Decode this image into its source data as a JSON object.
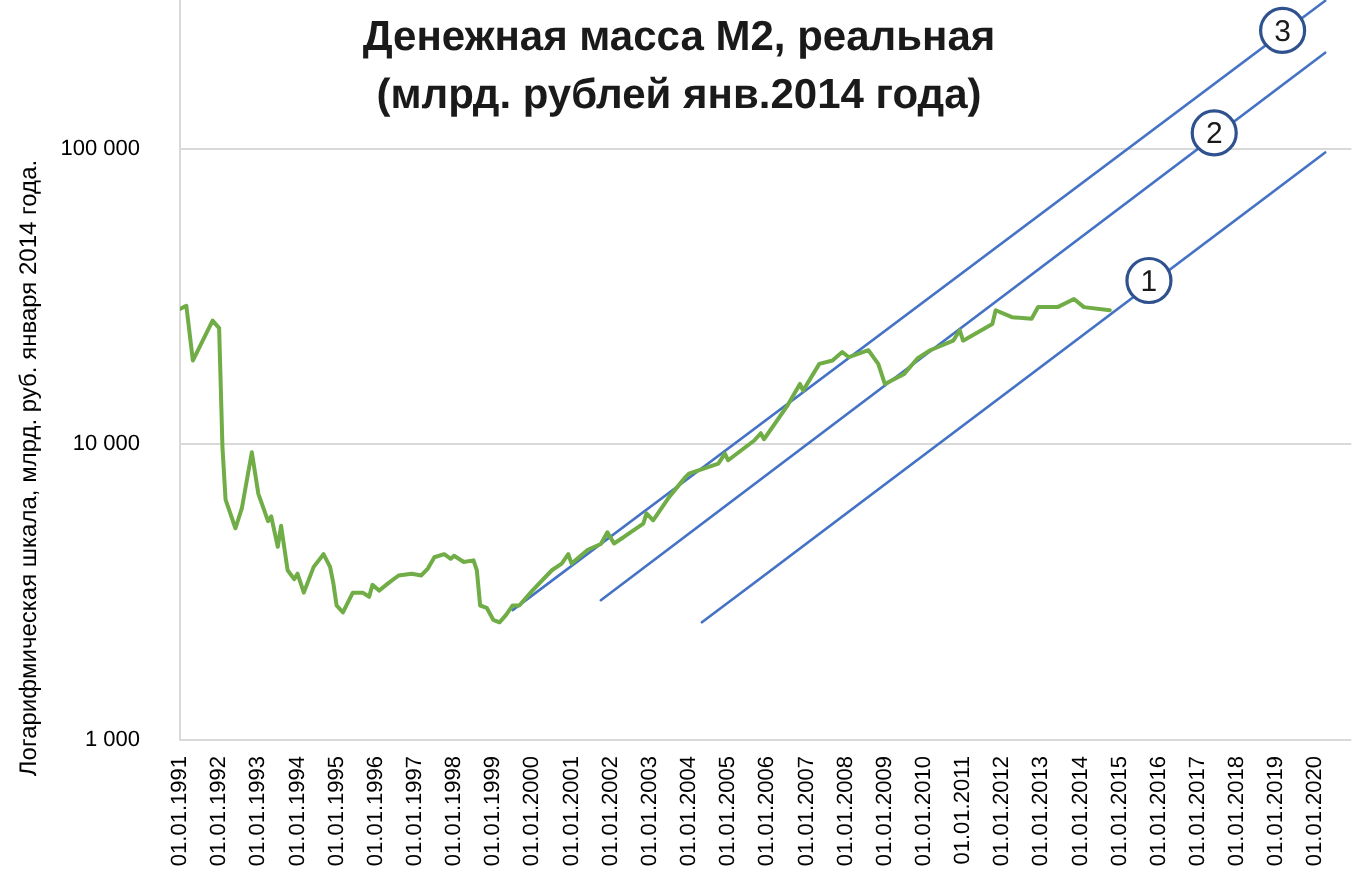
{
  "chart_data": {
    "type": "line",
    "title": "Денежная масса М2, реальная",
    "subtitle": "(млрд. рублей янв.2014 года)",
    "ylabel": "Логарифмическая шкала, млрд. руб. января 2014 года.",
    "log": true,
    "grid": "y",
    "marker": "none",
    "xlim": [
      "1991-01-01",
      "2020-12-01"
    ],
    "xticks": [
      {
        "value": "1991-01-01",
        "label": "01.01.1991"
      },
      {
        "value": "1992-01-01",
        "label": "01.01.1992"
      },
      {
        "value": "1993-01-01",
        "label": "01.01.1993"
      },
      {
        "value": "1994-01-01",
        "label": "01.01.1994"
      },
      {
        "value": "1995-01-01",
        "label": "01.01.1995"
      },
      {
        "value": "1996-01-01",
        "label": "01.01.1996"
      },
      {
        "value": "1997-01-01",
        "label": "01.01.1997"
      },
      {
        "value": "1998-01-01",
        "label": "01.01.1998"
      },
      {
        "value": "1999-01-01",
        "label": "01.01.1999"
      },
      {
        "value": "2000-01-01",
        "label": "01.01.2000"
      },
      {
        "value": "2001-01-01",
        "label": "01.01.2001"
      },
      {
        "value": "2002-01-01",
        "label": "01.01.2002"
      },
      {
        "value": "2003-01-01",
        "label": "01.01.2003"
      },
      {
        "value": "2004-01-01",
        "label": "01.01.2004"
      },
      {
        "value": "2005-01-01",
        "label": "01.01.2005"
      },
      {
        "value": "2006-01-01",
        "label": "01.01.2006"
      },
      {
        "value": "2007-01-01",
        "label": "01.01.2007"
      },
      {
        "value": "2008-01-01",
        "label": "01.01.2008"
      },
      {
        "value": "2009-01-01",
        "label": "01.01.2009"
      },
      {
        "value": "2010-01-01",
        "label": "01.01.2010"
      },
      {
        "value": "2011-01-01",
        "label": "01.01.2011"
      },
      {
        "value": "2012-01-01",
        "label": "01.01.2012"
      },
      {
        "value": "2013-01-01",
        "label": "01.01.2013"
      },
      {
        "value": "2014-01-01",
        "label": "01.01.2014"
      },
      {
        "value": "2015-01-01",
        "label": "01.01.2015"
      },
      {
        "value": "2016-01-01",
        "label": "01.01.2016"
      },
      {
        "value": "2017-01-01",
        "label": "01.01.2017"
      },
      {
        "value": "2018-01-01",
        "label": "01.01.2018"
      },
      {
        "value": "2019-01-01",
        "label": "01.01.2019"
      },
      {
        "value": "2020-01-01",
        "label": "01.01.2020"
      }
    ],
    "ylim": [
      1000,
      320000
    ],
    "yticks": [
      {
        "value": 1000,
        "label": "1 000"
      },
      {
        "value": 10000,
        "label": "10 000"
      },
      {
        "value": 100000,
        "label": "100 000"
      }
    ],
    "series": [
      {
        "color": "#70ad47",
        "x": [
          "1991-01",
          "1991-03",
          "1991-05",
          "1991-11",
          "1992-01",
          "1992-02",
          "1992-03",
          "1992-06",
          "1992-08",
          "1992-11",
          "1993-01",
          "1993-04",
          "1993-05",
          "1993-07",
          "1993-08",
          "1993-10",
          "1993-12",
          "1994-01",
          "1994-03",
          "1994-06",
          "1994-09",
          "1994-11",
          "1994-12",
          "1995-01",
          "1995-03",
          "1995-06",
          "1995-09",
          "1995-11",
          "1995-12",
          "1996-02",
          "1996-05",
          "1996-08",
          "1996-12",
          "1997-03",
          "1997-05",
          "1997-07",
          "1997-10",
          "1997-12",
          "1998-01",
          "1998-04",
          "1998-07",
          "1998-08",
          "1998-09",
          "1998-11",
          "1999-01",
          "1999-03",
          "1999-05",
          "1999-07",
          "1999-09",
          "2000-01",
          "2000-07",
          "2000-10",
          "2000-12",
          "2001-01",
          "2001-06",
          "2001-10",
          "2001-12",
          "2002-02",
          "2002-05",
          "2002-11",
          "2002-12",
          "2003-02",
          "2003-07",
          "2003-12",
          "2004-01",
          "2004-10",
          "2004-12",
          "2005-01",
          "2005-09",
          "2005-11",
          "2005-12",
          "2006-07",
          "2006-11",
          "2006-12",
          "2007-05",
          "2007-09",
          "2007-12",
          "2008-02",
          "2008-08",
          "2008-11",
          "2009-01",
          "2009-03",
          "2009-07",
          "2009-11",
          "2010-03",
          "2010-10",
          "2010-12",
          "2011-01",
          "2011-10",
          "2011-11",
          "2012-04",
          "2012-10",
          "2012-12",
          "2013-06",
          "2013-11",
          "2014-02",
          "2014-10"
        ],
        "values": [
          28700,
          29400,
          19200,
          26200,
          24700,
          9800,
          6500,
          5200,
          6100,
          9400,
          6800,
          5500,
          5700,
          4500,
          5300,
          3750,
          3500,
          3650,
          3150,
          3850,
          4250,
          3850,
          3400,
          2850,
          2700,
          3150,
          3150,
          3050,
          3350,
          3200,
          3400,
          3600,
          3650,
          3600,
          3800,
          4150,
          4250,
          4100,
          4200,
          4000,
          4050,
          3750,
          2850,
          2800,
          2550,
          2500,
          2650,
          2850,
          2850,
          3200,
          3750,
          3950,
          4250,
          3950,
          4400,
          4600,
          5040,
          4620,
          4850,
          5390,
          5840,
          5530,
          6640,
          7760,
          7960,
          8600,
          9300,
          8830,
          10300,
          10900,
          10400,
          13400,
          16000,
          15200,
          18700,
          19200,
          20500,
          19700,
          20800,
          18700,
          16000,
          16400,
          17300,
          19500,
          20800,
          22400,
          24300,
          22400,
          25500,
          28400,
          26900,
          26600,
          29100,
          29100,
          31000,
          29100,
          28400
        ]
      },
      {
        "color": "#4472c4",
        "x": [
          "2004-05",
          "2020-04"
        ],
        "values": [
          2500,
          97000
        ]
      },
      {
        "color": "#4472c4",
        "x": [
          "2001-10",
          "2020-04"
        ],
        "values": [
          2970,
          211000
        ]
      },
      {
        "color": "#4472c4",
        "x": [
          "1999-07",
          "2020-04"
        ],
        "values": [
          2750,
          316000
        ]
      }
    ],
    "annotations": [
      {
        "text": "1",
        "x": "2015-10",
        "y": 35800
      },
      {
        "text": "2",
        "x": "2017-06",
        "y": 113000
      },
      {
        "text": "3",
        "x": "2019-03",
        "y": 251000
      }
    ]
  }
}
